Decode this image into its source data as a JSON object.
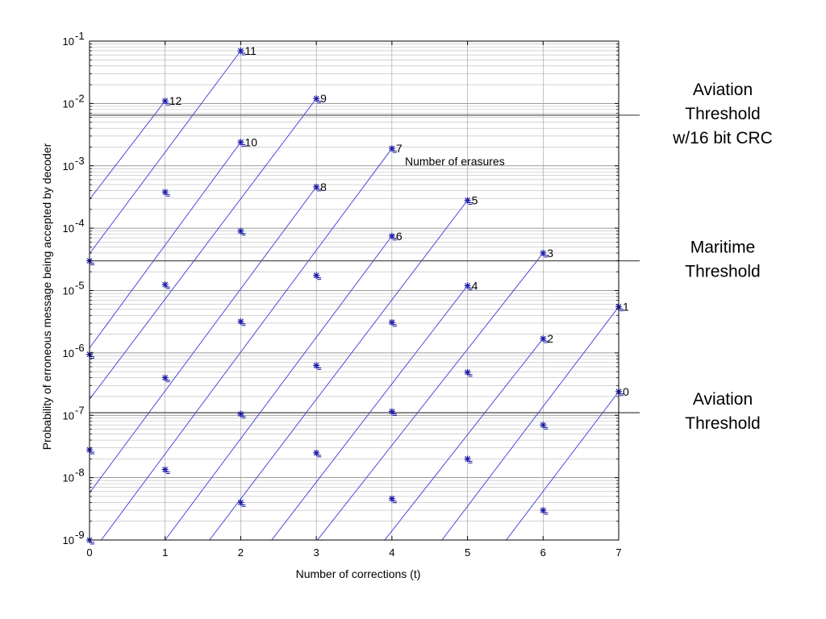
{
  "chart_data": {
    "type": "line",
    "title": "",
    "xlabel": "Number of corrections (t)",
    "ylabel": "Probability of erroneous message being accepted by decoder",
    "xlim": [
      0,
      7
    ],
    "ylim": [
      1e-09,
      0.1
    ],
    "yscale": "log",
    "grid": true,
    "xticks": [
      "0",
      "1",
      "2",
      "3",
      "4",
      "5",
      "6",
      "7"
    ],
    "yticks": [
      {
        "base": "10",
        "exp": "-9"
      },
      {
        "base": "10",
        "exp": "-8"
      },
      {
        "base": "10",
        "exp": "-7"
      },
      {
        "base": "10",
        "exp": "-6"
      },
      {
        "base": "10",
        "exp": "-5"
      },
      {
        "base": "10",
        "exp": "-4"
      },
      {
        "base": "10",
        "exp": "-3"
      },
      {
        "base": "10",
        "exp": "-2"
      },
      {
        "base": "10",
        "exp": "-1"
      }
    ],
    "line_color": "#3b3bd8",
    "marker_color": "#1a1aa8",
    "annotation": "Number of erasures",
    "series": [
      {
        "name": "0",
        "points": [
          [
            7,
            2.4e-07
          ]
        ],
        "slope": 26
      },
      {
        "name": "1",
        "points": [
          [
            7,
            5.5e-06
          ]
        ],
        "slope": 26
      },
      {
        "name": "2",
        "points": [
          [
            6,
            1.7e-06
          ],
          [
            5,
            4.9e-08
          ],
          [
            4,
            1.4e-09
          ]
        ],
        "slope": 26
      },
      {
        "name": "3",
        "points": [
          [
            6,
            4e-05
          ],
          [
            5,
            1.15e-06
          ],
          [
            4,
            3.3e-08
          ]
        ],
        "slope": 26
      },
      {
        "name": "4",
        "points": [
          [
            5,
            1.2e-05
          ],
          [
            4,
            3.1e-07
          ],
          [
            3,
            8.5e-09
          ]
        ],
        "slope": 26
      },
      {
        "name": "5",
        "points": [
          [
            5,
            0.00028
          ],
          [
            4,
            7.2e-06
          ],
          [
            3,
            1.8e-07
          ]
        ],
        "slope": 26
      },
      {
        "name": "6",
        "points": [
          [
            4,
            7.5e-05
          ],
          [
            3,
            1.8e-06
          ],
          [
            2,
            4.3e-08
          ],
          [
            1,
            1e-09
          ]
        ],
        "slope": 26
      },
      {
        "name": "7",
        "points": [
          [
            4,
            0.0019
          ],
          [
            3,
            4.5e-05
          ],
          [
            2,
            1.05e-06
          ],
          [
            1,
            2.4e-08
          ]
        ],
        "slope": 26
      },
      {
        "name": "8",
        "points": [
          [
            3,
            0.00046
          ],
          [
            2,
            1.1e-05
          ],
          [
            1,
            2.5e-07
          ],
          [
            0,
            5.7e-09
          ]
        ],
        "slope": 26
      },
      {
        "name": "9",
        "points": [
          [
            3,
            0.012
          ],
          [
            2,
            0.00034
          ],
          [
            1,
            8e-06
          ],
          [
            0,
            1.8e-07
          ]
        ],
        "slope": 26
      },
      {
        "name": "10",
        "points": [
          [
            2,
            0.0024
          ],
          [
            1,
            5.5e-05
          ],
          [
            0,
            1.2e-06
          ]
        ],
        "slope": 26
      },
      {
        "name": "11",
        "points": [
          [
            2,
            0.07
          ],
          [
            1,
            0.0017
          ],
          [
            0,
            3.9e-05
          ]
        ],
        "slope": 26
      },
      {
        "name": "12",
        "points": [
          [
            1,
            0.011
          ],
          [
            0,
            0.00029
          ]
        ],
        "slope": 26
      }
    ],
    "markers": [
      [
        7,
        2.4e-07
      ],
      [
        7,
        5.5e-06
      ],
      [
        6,
        1.7e-06
      ],
      [
        6,
        4e-05
      ],
      [
        6,
        7e-08
      ],
      [
        6,
        3e-09
      ],
      [
        5,
        0.00028
      ],
      [
        5,
        1.2e-05
      ],
      [
        5,
        4.9e-07
      ],
      [
        5,
        2e-08
      ],
      [
        4,
        0.0019
      ],
      [
        4,
        7.5e-05
      ],
      [
        4,
        3.1e-06
      ],
      [
        4,
        1.15e-07
      ],
      [
        4,
        4.6e-09
      ],
      [
        3,
        0.012
      ],
      [
        3,
        0.00046
      ],
      [
        3,
        1.75e-05
      ],
      [
        3,
        6.3e-07
      ],
      [
        3,
        2.5e-08
      ],
      [
        2,
        0.07
      ],
      [
        2,
        0.0024
      ],
      [
        2,
        9e-05
      ],
      [
        2,
        3.2e-06
      ],
      [
        2,
        1.05e-07
      ],
      [
        2,
        4e-09
      ],
      [
        1,
        0.011
      ],
      [
        1,
        0.00038
      ],
      [
        1,
        1.25e-05
      ],
      [
        1,
        4e-07
      ],
      [
        1,
        1.35e-08
      ],
      [
        0,
        3e-05
      ],
      [
        0,
        9.5e-07
      ],
      [
        0,
        2.8e-08
      ],
      [
        0,
        1e-09
      ]
    ],
    "thresholds": [
      {
        "label_lines": [
          "Aviation",
          "Threshold",
          "w/16 bit CRC"
        ],
        "value": 0.0065
      },
      {
        "label_lines": [
          "Maritime",
          "Threshold"
        ],
        "value": 3e-05
      },
      {
        "label_lines": [
          "Aviation",
          "Threshold"
        ],
        "value": 1.1e-07
      }
    ]
  }
}
